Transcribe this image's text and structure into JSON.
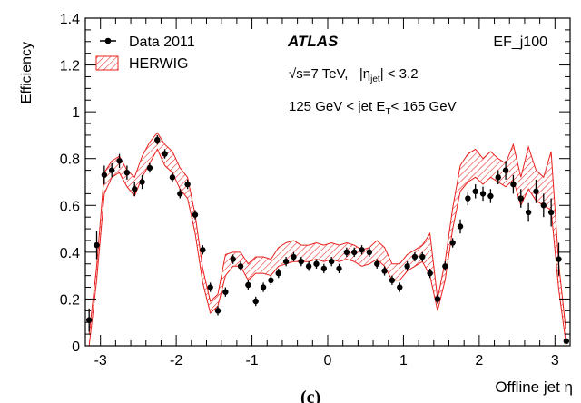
{
  "chart_data": {
    "type": "scatter",
    "xlabel": "Offline jet η",
    "ylabel": "Efficiency",
    "xlim": [
      -3.2,
      3.2
    ],
    "ylim": [
      0,
      1.4
    ],
    "x_ticks": [
      -3,
      -2,
      -1,
      0,
      1,
      2,
      3
    ],
    "y_ticks": [
      0,
      0.2,
      0.4,
      0.6,
      0.8,
      1,
      1.2,
      1.4
    ],
    "grid": false,
    "legend_position": "top-left",
    "legend": {
      "data_label": "Data 2011",
      "mc_label": "HERWIG"
    },
    "annotations": {
      "experiment": "ATLAS",
      "trigger": "EF_j100",
      "energy_prefix": "√s=7 TeV,   |η",
      "energy_sub": "jet",
      "energy_suffix": "| < 3.2",
      "et_prefix": "125 GeV < jet E",
      "et_sub": "T",
      "et_suffix": "< 165 GeV",
      "panel": "(c)"
    },
    "colors": {
      "data": "#000000",
      "band": "#e8201e"
    },
    "series": [
      {
        "name": "Data 2011",
        "x": [
          -3.15,
          -3.05,
          -2.95,
          -2.85,
          -2.75,
          -2.65,
          -2.55,
          -2.45,
          -2.35,
          -2.25,
          -2.15,
          -2.05,
          -1.95,
          -1.85,
          -1.75,
          -1.65,
          -1.55,
          -1.45,
          -1.35,
          -1.25,
          -1.15,
          -1.05,
          -0.95,
          -0.85,
          -0.75,
          -0.65,
          -0.55,
          -0.45,
          -0.35,
          -0.25,
          -0.15,
          -0.05,
          0.05,
          0.15,
          0.25,
          0.35,
          0.45,
          0.55,
          0.65,
          0.75,
          0.85,
          0.95,
          1.05,
          1.15,
          1.25,
          1.35,
          1.45,
          1.55,
          1.65,
          1.75,
          1.85,
          1.95,
          2.05,
          2.15,
          2.25,
          2.35,
          2.45,
          2.55,
          2.65,
          2.75,
          2.85,
          2.95,
          3.05,
          3.15
        ],
        "y": [
          0.11,
          0.43,
          0.73,
          0.75,
          0.79,
          0.74,
          0.67,
          0.7,
          0.76,
          0.88,
          0.82,
          0.72,
          0.65,
          0.69,
          0.56,
          0.41,
          0.25,
          0.15,
          0.23,
          0.37,
          0.34,
          0.26,
          0.19,
          0.25,
          0.28,
          0.31,
          0.36,
          0.38,
          0.36,
          0.34,
          0.35,
          0.33,
          0.36,
          0.33,
          0.4,
          0.4,
          0.41,
          0.4,
          0.35,
          0.32,
          0.28,
          0.25,
          0.34,
          0.38,
          0.38,
          0.31,
          0.2,
          0.34,
          0.44,
          0.51,
          0.63,
          0.66,
          0.65,
          0.64,
          0.72,
          0.75,
          0.69,
          0.63,
          0.57,
          0.66,
          0.6,
          0.57,
          0.37,
          0.02
        ],
        "yerr": [
          0.05,
          0.06,
          0.04,
          0.03,
          0.03,
          0.03,
          0.03,
          0.03,
          0.02,
          0.02,
          0.02,
          0.02,
          0.02,
          0.02,
          0.02,
          0.02,
          0.02,
          0.02,
          0.02,
          0.02,
          0.02,
          0.02,
          0.02,
          0.02,
          0.02,
          0.02,
          0.02,
          0.02,
          0.02,
          0.02,
          0.02,
          0.02,
          0.02,
          0.02,
          0.02,
          0.02,
          0.02,
          0.02,
          0.02,
          0.02,
          0.02,
          0.02,
          0.02,
          0.02,
          0.02,
          0.02,
          0.02,
          0.02,
          0.02,
          0.03,
          0.03,
          0.03,
          0.03,
          0.03,
          0.03,
          0.04,
          0.04,
          0.04,
          0.04,
          0.05,
          0.05,
          0.06,
          0.07,
          0.01
        ]
      },
      {
        "name": "HERWIG",
        "x": [
          -3.15,
          -3.05,
          -2.95,
          -2.85,
          -2.75,
          -2.65,
          -2.55,
          -2.45,
          -2.35,
          -2.25,
          -2.15,
          -2.05,
          -1.95,
          -1.85,
          -1.75,
          -1.65,
          -1.55,
          -1.45,
          -1.35,
          -1.25,
          -1.15,
          -1.05,
          -0.95,
          -0.85,
          -0.75,
          -0.65,
          -0.55,
          -0.45,
          -0.35,
          -0.25,
          -0.15,
          -0.05,
          0.05,
          0.15,
          0.25,
          0.35,
          0.45,
          0.55,
          0.65,
          0.75,
          0.85,
          0.95,
          1.05,
          1.15,
          1.25,
          1.35,
          1.45,
          1.55,
          1.65,
          1.75,
          1.85,
          1.95,
          2.05,
          2.15,
          2.25,
          2.35,
          2.45,
          2.55,
          2.65,
          2.75,
          2.85,
          2.95,
          3.05,
          3.15
        ],
        "lower": [
          0.0,
          0.28,
          0.65,
          0.72,
          0.74,
          0.68,
          0.64,
          0.72,
          0.78,
          0.84,
          0.77,
          0.74,
          0.67,
          0.63,
          0.48,
          0.27,
          0.14,
          0.17,
          0.3,
          0.34,
          0.34,
          0.28,
          0.31,
          0.31,
          0.3,
          0.34,
          0.35,
          0.36,
          0.36,
          0.36,
          0.37,
          0.36,
          0.37,
          0.36,
          0.37,
          0.36,
          0.34,
          0.35,
          0.37,
          0.34,
          0.28,
          0.28,
          0.32,
          0.34,
          0.36,
          0.3,
          0.15,
          0.28,
          0.5,
          0.66,
          0.7,
          0.72,
          0.69,
          0.72,
          0.7,
          0.68,
          0.71,
          0.6,
          0.67,
          0.62,
          0.6,
          0.58,
          0.24,
          0.0
        ],
        "upper": [
          0.05,
          0.34,
          0.74,
          0.79,
          0.81,
          0.75,
          0.72,
          0.81,
          0.87,
          0.91,
          0.86,
          0.83,
          0.76,
          0.72,
          0.56,
          0.33,
          0.19,
          0.22,
          0.39,
          0.4,
          0.4,
          0.35,
          0.38,
          0.38,
          0.37,
          0.42,
          0.44,
          0.45,
          0.43,
          0.43,
          0.44,
          0.43,
          0.44,
          0.43,
          0.44,
          0.43,
          0.41,
          0.42,
          0.45,
          0.42,
          0.35,
          0.35,
          0.39,
          0.41,
          0.43,
          0.48,
          0.2,
          0.36,
          0.59,
          0.77,
          0.82,
          0.84,
          0.8,
          0.83,
          0.8,
          0.78,
          0.86,
          0.72,
          0.85,
          0.75,
          0.72,
          0.83,
          0.35,
          0.05
        ]
      }
    ]
  }
}
